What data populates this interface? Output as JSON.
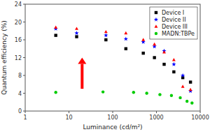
{
  "chart_data": {
    "type": "scatter",
    "x_label": "Luminance (cd/m²)",
    "y_label": "Quantum efficiency (%)",
    "log": "x",
    "xlim": [
      1,
      10000
    ],
    "xticks": [
      1,
      10,
      100,
      1000,
      10000
    ],
    "ylim": [
      0,
      24
    ],
    "yticks": [
      0,
      4,
      8,
      12,
      16,
      20,
      24
    ],
    "grid": false,
    "legend": "upper right",
    "series": [
      {
        "name": "Device I",
        "color": "#000000",
        "marker": "square",
        "x": [
          5,
          15,
          70,
          200,
          500,
          900,
          1500,
          2500,
          4000,
          6000
        ],
        "values": [
          17.0,
          16.7,
          16.0,
          14.0,
          13.0,
          12.0,
          10.5,
          8.8,
          7.5,
          6.5
        ]
      },
      {
        "name": "Device II",
        "color": "#0000ff",
        "marker": "star",
        "x": [
          5,
          15,
          70,
          200,
          500,
          900,
          1500,
          2500,
          4000,
          6000
        ],
        "values": [
          18.5,
          17.5,
          17.0,
          16.2,
          15.5,
          14.5,
          13.5,
          10.5,
          8.0,
          4.5
        ]
      },
      {
        "name": "Device III",
        "color": "#ff0000",
        "marker": "triangle",
        "x": [
          5,
          15,
          70,
          200,
          500,
          900,
          1500,
          2500,
          4000,
          6000
        ],
        "values": [
          18.8,
          18.5,
          17.8,
          17.5,
          16.0,
          15.0,
          13.2,
          11.5,
          5.5,
          4.8
        ]
      },
      {
        "name": "MADN:TBPe",
        "color": "#00cc00",
        "marker": "circle",
        "x": [
          5,
          60,
          300,
          600,
          1200,
          2200,
          3500,
          5000,
          6500
        ],
        "values": [
          4.2,
          4.3,
          4.2,
          4.0,
          3.7,
          3.5,
          3.0,
          2.2,
          1.8
        ]
      }
    ],
    "annotations": [
      {
        "type": "arrow",
        "x": 20,
        "y_start": 5.0,
        "y_end": 12.0,
        "color": "red"
      }
    ]
  }
}
